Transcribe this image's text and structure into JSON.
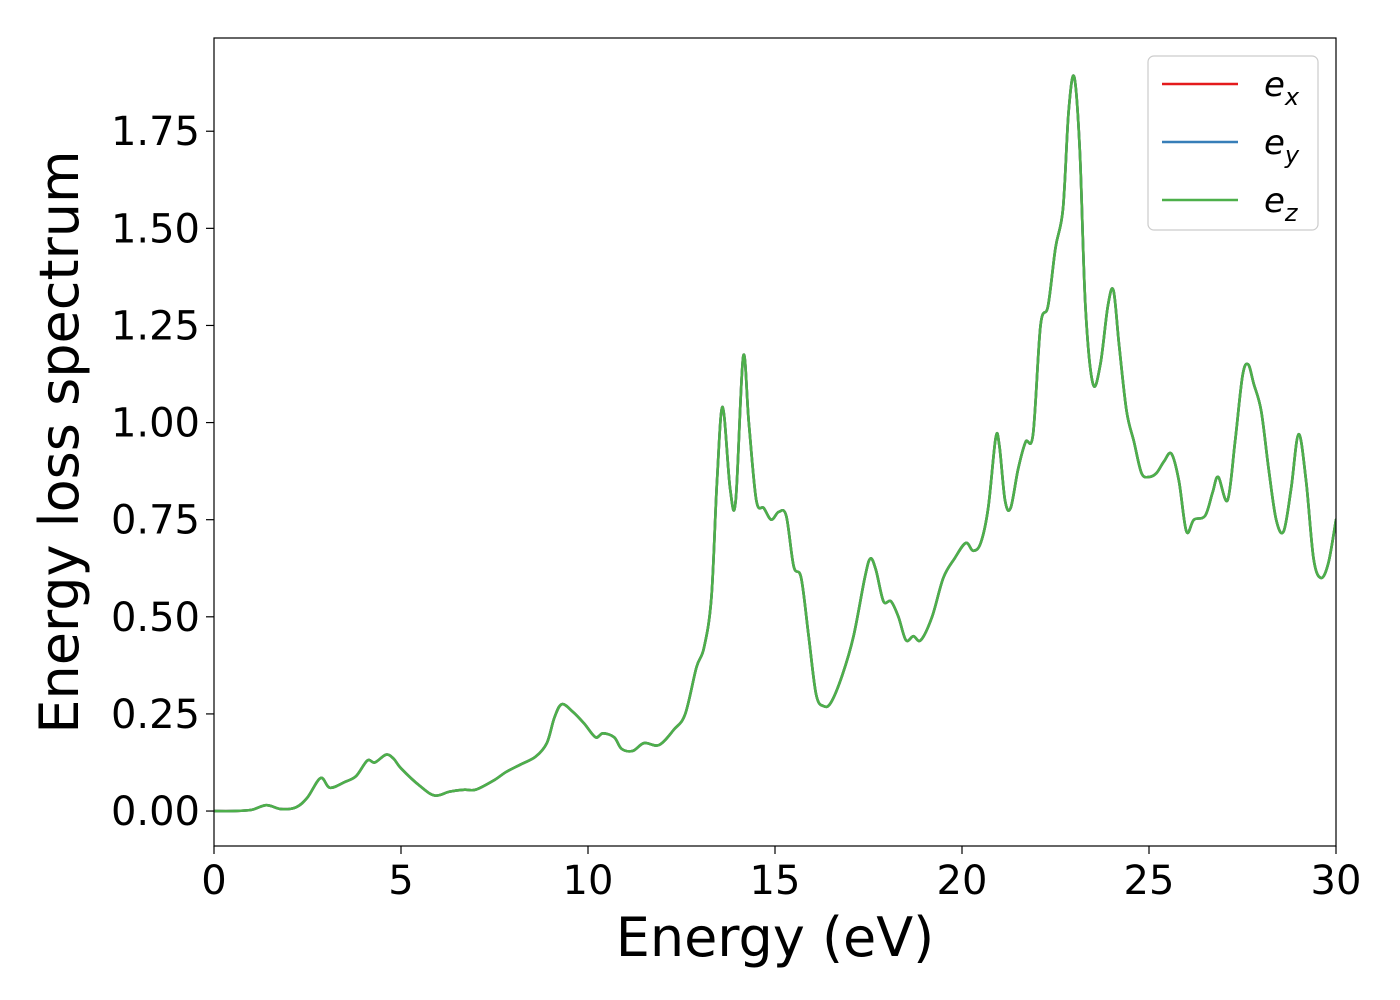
{
  "chart_data": {
    "type": "line",
    "title": "",
    "xlabel": "Energy (eV)",
    "ylabel": "Energy loss spectrum",
    "xlim": [
      0,
      30
    ],
    "ylim": [
      -0.09,
      1.99
    ],
    "xticks": [
      0,
      5,
      10,
      15,
      20,
      25,
      30
    ],
    "xtick_labels": [
      "0",
      "5",
      "10",
      "15",
      "20",
      "25",
      "30"
    ],
    "yticks": [
      0,
      0.25,
      0.5,
      0.75,
      1.0,
      1.25,
      1.5,
      1.75
    ],
    "ytick_labels": [
      "0.00",
      "0.25",
      "0.50",
      "0.75",
      "1.00",
      "1.25",
      "1.50",
      "1.75"
    ],
    "grid": false,
    "legend_position": "top-right",
    "x": [
      0,
      0.5,
      1.0,
      1.4,
      1.8,
      2.2,
      2.5,
      2.85,
      3.1,
      3.5,
      3.8,
      4.1,
      4.3,
      4.6,
      4.8,
      5.0,
      5.5,
      5.9,
      6.3,
      6.7,
      7.0,
      7.5,
      7.8,
      8.2,
      8.6,
      8.9,
      9.1,
      9.3,
      9.6,
      9.9,
      10.2,
      10.4,
      10.7,
      10.9,
      11.2,
      11.5,
      11.9,
      12.3,
      12.6,
      12.9,
      13.1,
      13.3,
      13.45,
      13.6,
      13.8,
      13.95,
      14.15,
      14.3,
      14.5,
      14.7,
      14.9,
      15.1,
      15.3,
      15.5,
      15.7,
      15.9,
      16.1,
      16.3,
      16.5,
      16.8,
      17.1,
      17.4,
      17.55,
      17.7,
      17.9,
      18.1,
      18.3,
      18.5,
      18.7,
      18.9,
      19.2,
      19.5,
      19.8,
      20.1,
      20.3,
      20.5,
      20.7,
      20.9,
      21.0,
      21.15,
      21.3,
      21.5,
      21.7,
      21.9,
      22.1,
      22.3,
      22.5,
      22.7,
      22.85,
      23.0,
      23.15,
      23.3,
      23.5,
      23.7,
      23.9,
      24.05,
      24.2,
      24.4,
      24.6,
      24.8,
      25.0,
      25.2,
      25.4,
      25.6,
      25.8,
      26.0,
      26.2,
      26.5,
      26.7,
      26.85,
      27.1,
      27.3,
      27.5,
      27.65,
      27.8,
      28.0,
      28.2,
      28.4,
      28.6,
      28.8,
      29.0,
      29.2,
      29.4,
      29.6,
      29.8,
      30.0
    ],
    "series": [
      {
        "name": "e_x",
        "label_base": "e",
        "label_sub": "x",
        "color": "#e41a1c",
        "values": [
          0.0,
          0.0,
          0.003,
          0.015,
          0.005,
          0.01,
          0.035,
          0.085,
          0.06,
          0.075,
          0.09,
          0.13,
          0.125,
          0.145,
          0.135,
          0.11,
          0.065,
          0.04,
          0.05,
          0.055,
          0.055,
          0.08,
          0.1,
          0.12,
          0.14,
          0.175,
          0.24,
          0.275,
          0.255,
          0.225,
          0.19,
          0.2,
          0.19,
          0.16,
          0.155,
          0.175,
          0.17,
          0.21,
          0.25,
          0.37,
          0.42,
          0.55,
          0.85,
          1.04,
          0.83,
          0.8,
          1.17,
          1.0,
          0.8,
          0.78,
          0.75,
          0.77,
          0.76,
          0.63,
          0.6,
          0.45,
          0.3,
          0.27,
          0.28,
          0.35,
          0.45,
          0.6,
          0.65,
          0.62,
          0.54,
          0.54,
          0.5,
          0.44,
          0.45,
          0.44,
          0.5,
          0.6,
          0.65,
          0.69,
          0.67,
          0.69,
          0.78,
          0.96,
          0.94,
          0.8,
          0.78,
          0.88,
          0.95,
          0.97,
          1.25,
          1.3,
          1.45,
          1.55,
          1.8,
          1.89,
          1.7,
          1.3,
          1.1,
          1.15,
          1.3,
          1.34,
          1.2,
          1.03,
          0.95,
          0.87,
          0.86,
          0.87,
          0.9,
          0.92,
          0.85,
          0.72,
          0.75,
          0.76,
          0.82,
          0.86,
          0.8,
          0.95,
          1.12,
          1.15,
          1.1,
          1.03,
          0.88,
          0.75,
          0.72,
          0.83,
          0.97,
          0.85,
          0.65,
          0.6,
          0.64,
          0.75
        ]
      },
      {
        "name": "e_y",
        "label_base": "e",
        "label_sub": "y",
        "color": "#377eb8",
        "values": [
          0.0,
          0.0,
          0.003,
          0.015,
          0.005,
          0.01,
          0.035,
          0.085,
          0.06,
          0.075,
          0.09,
          0.13,
          0.125,
          0.145,
          0.135,
          0.11,
          0.065,
          0.04,
          0.05,
          0.055,
          0.055,
          0.08,
          0.1,
          0.12,
          0.14,
          0.175,
          0.24,
          0.275,
          0.255,
          0.225,
          0.19,
          0.2,
          0.19,
          0.16,
          0.155,
          0.175,
          0.17,
          0.21,
          0.25,
          0.37,
          0.42,
          0.55,
          0.85,
          1.04,
          0.83,
          0.8,
          1.17,
          1.0,
          0.8,
          0.78,
          0.75,
          0.77,
          0.76,
          0.63,
          0.6,
          0.45,
          0.3,
          0.27,
          0.28,
          0.35,
          0.45,
          0.6,
          0.65,
          0.62,
          0.54,
          0.54,
          0.5,
          0.44,
          0.45,
          0.44,
          0.5,
          0.6,
          0.65,
          0.69,
          0.67,
          0.69,
          0.78,
          0.96,
          0.94,
          0.8,
          0.78,
          0.88,
          0.95,
          0.97,
          1.25,
          1.3,
          1.45,
          1.55,
          1.8,
          1.89,
          1.7,
          1.3,
          1.1,
          1.15,
          1.3,
          1.34,
          1.2,
          1.03,
          0.95,
          0.87,
          0.86,
          0.87,
          0.9,
          0.92,
          0.85,
          0.72,
          0.75,
          0.76,
          0.82,
          0.86,
          0.8,
          0.95,
          1.12,
          1.15,
          1.1,
          1.03,
          0.88,
          0.75,
          0.72,
          0.83,
          0.97,
          0.85,
          0.65,
          0.6,
          0.64,
          0.75
        ]
      },
      {
        "name": "e_z",
        "label_base": "e",
        "label_sub": "z",
        "color": "#4daf4a",
        "values": [
          0.0,
          0.0,
          0.003,
          0.015,
          0.005,
          0.01,
          0.035,
          0.085,
          0.06,
          0.075,
          0.09,
          0.13,
          0.125,
          0.145,
          0.135,
          0.11,
          0.065,
          0.04,
          0.05,
          0.055,
          0.055,
          0.08,
          0.1,
          0.12,
          0.14,
          0.175,
          0.24,
          0.275,
          0.255,
          0.225,
          0.19,
          0.2,
          0.19,
          0.16,
          0.155,
          0.175,
          0.17,
          0.21,
          0.25,
          0.37,
          0.42,
          0.55,
          0.85,
          1.04,
          0.83,
          0.8,
          1.17,
          1.0,
          0.8,
          0.78,
          0.75,
          0.77,
          0.76,
          0.63,
          0.6,
          0.45,
          0.3,
          0.27,
          0.28,
          0.35,
          0.45,
          0.6,
          0.65,
          0.62,
          0.54,
          0.54,
          0.5,
          0.44,
          0.45,
          0.44,
          0.5,
          0.6,
          0.65,
          0.69,
          0.67,
          0.69,
          0.78,
          0.96,
          0.94,
          0.8,
          0.78,
          0.88,
          0.95,
          0.97,
          1.25,
          1.3,
          1.45,
          1.55,
          1.8,
          1.89,
          1.7,
          1.3,
          1.1,
          1.15,
          1.3,
          1.34,
          1.2,
          1.03,
          0.95,
          0.87,
          0.86,
          0.87,
          0.9,
          0.92,
          0.85,
          0.72,
          0.75,
          0.76,
          0.82,
          0.86,
          0.8,
          0.95,
          1.12,
          1.15,
          1.1,
          1.03,
          0.88,
          0.75,
          0.72,
          0.83,
          0.97,
          0.85,
          0.65,
          0.6,
          0.64,
          0.75
        ]
      }
    ]
  }
}
